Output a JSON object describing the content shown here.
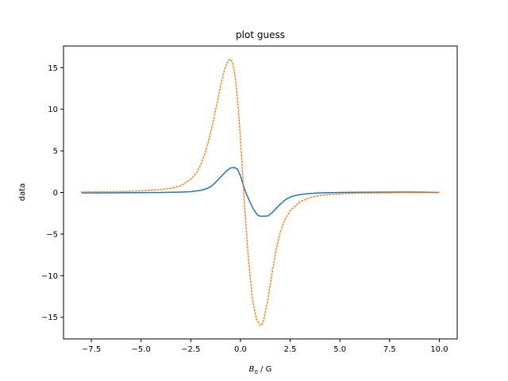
{
  "chart_data": {
    "type": "line",
    "title": "plot guess",
    "xlabel": "B",
    "xlabel_subscript": "0",
    "xlabel_suffix": " / G",
    "ylabel": "data",
    "xlim": [
      -8.9,
      10.9
    ],
    "ylim": [
      -17.6,
      17.6
    ],
    "xticks": [
      -7.5,
      -5.0,
      -2.5,
      0.0,
      2.5,
      5.0,
      7.5,
      10.0
    ],
    "xtick_labels": [
      "−7.5",
      "−5.0",
      "−2.5",
      "0.0",
      "2.5",
      "5.0",
      "7.5",
      "10.0"
    ],
    "yticks": [
      -15,
      -10,
      -5,
      0,
      5,
      10,
      15
    ],
    "ytick_labels": [
      "−15",
      "−10",
      "−5",
      "0",
      "5",
      "10",
      "15"
    ],
    "grid": false,
    "series": [
      {
        "color": "#1f77b4",
        "style": "solid",
        "x": [
          -8.0,
          -6.0,
          -4.0,
          -3.0,
          -2.5,
          -2.0,
          -1.7,
          -1.5,
          -1.3,
          -1.1,
          -0.9,
          -0.7,
          -0.5,
          -0.3,
          -0.15,
          0.0,
          0.1,
          0.25,
          0.45,
          0.65,
          0.85,
          1.0,
          1.2,
          1.4,
          1.6,
          1.8,
          2.0,
          2.3,
          2.6,
          3.0,
          3.5,
          4.0,
          5.0,
          6.0,
          7.0,
          8.0,
          9.0,
          10.0
        ],
        "y": [
          -0.05,
          -0.04,
          0.0,
          0.05,
          0.1,
          0.25,
          0.45,
          0.7,
          1.1,
          1.6,
          2.1,
          2.6,
          2.95,
          3.0,
          2.8,
          2.0,
          1.2,
          0.1,
          -1.0,
          -2.0,
          -2.7,
          -2.85,
          -2.85,
          -2.8,
          -2.4,
          -1.9,
          -1.4,
          -0.8,
          -0.45,
          -0.25,
          -0.12,
          -0.05,
          0.0,
          0.02,
          0.04,
          0.05,
          0.04,
          0.0
        ]
      },
      {
        "color": "#ff7f0e",
        "style": "dotted",
        "x": [
          -8.0,
          -6.0,
          -5.0,
          -4.0,
          -3.5,
          -3.0,
          -2.5,
          -2.2,
          -2.0,
          -1.8,
          -1.6,
          -1.4,
          -1.2,
          -1.0,
          -0.8,
          -0.6,
          -0.5,
          -0.4,
          -0.3,
          -0.2,
          -0.1,
          0.0,
          0.2,
          0.4,
          0.6,
          0.8,
          1.0,
          1.1,
          1.2,
          1.4,
          1.6,
          1.8,
          2.0,
          2.2,
          2.5,
          3.0,
          3.5,
          4.0,
          5.0,
          6.0,
          8.0,
          10.0
        ],
        "y": [
          0.05,
          0.1,
          0.2,
          0.35,
          0.5,
          0.8,
          1.6,
          2.4,
          3.3,
          4.6,
          6.2,
          8.2,
          10.5,
          12.8,
          14.8,
          15.9,
          16.0,
          15.6,
          14.5,
          12.5,
          9.8,
          6.5,
          -1.5,
          -8.0,
          -12.8,
          -15.2,
          -16.0,
          -15.8,
          -15.0,
          -12.5,
          -9.5,
          -6.8,
          -4.8,
          -3.4,
          -2.2,
          -1.1,
          -0.6,
          -0.35,
          -0.15,
          -0.08,
          -0.03,
          -0.02
        ]
      }
    ]
  }
}
